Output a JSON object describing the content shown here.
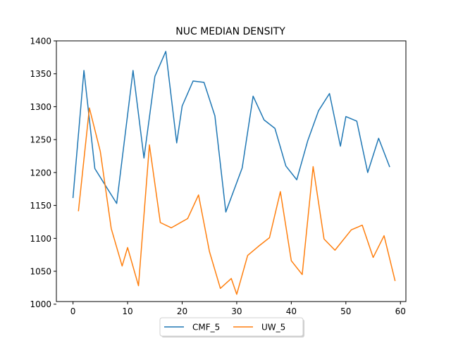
{
  "chart_data": {
    "type": "line",
    "title": "NUC MEDIAN DENSITY",
    "xlabel": "",
    "ylabel": "",
    "xlim": [
      -3.05,
      61.0
    ],
    "ylim": [
      1004,
      1400
    ],
    "x_ticks": [
      0,
      10,
      20,
      30,
      40,
      50,
      60
    ],
    "y_ticks": [
      1000,
      1050,
      1100,
      1150,
      1200,
      1250,
      1300,
      1350,
      1400
    ],
    "grid": false,
    "legend_position": "bottom-center",
    "series": [
      {
        "name": "CMF_5",
        "color": "#1f77b4",
        "x": [
          0,
          2,
          4,
          8,
          11,
          13,
          15,
          17,
          19,
          20,
          22,
          24,
          26,
          28,
          31,
          33,
          35,
          37,
          39,
          41,
          43,
          45,
          47,
          49,
          50,
          52,
          54,
          56,
          58
        ],
        "y": [
          1162,
          1355,
          1206,
          1153,
          1355,
          1222,
          1346,
          1384,
          1245,
          1301,
          1339,
          1337,
          1286,
          1140,
          1207,
          1316,
          1280,
          1267,
          1210,
          1189,
          1248,
          1294,
          1320,
          1240,
          1285,
          1278,
          1200,
          1252,
          1209
        ]
      },
      {
        "name": "UW_5",
        "color": "#ff7f0e",
        "x": [
          1,
          3,
          5,
          7,
          9,
          10,
          12,
          14,
          16,
          18,
          21,
          23,
          25,
          27,
          29,
          30,
          32,
          34,
          36,
          38,
          40,
          42,
          44,
          46,
          48,
          51,
          53,
          55,
          57,
          59
        ],
        "y": [
          1142,
          1298,
          1232,
          1115,
          1058,
          1086,
          1028,
          1242,
          1124,
          1116,
          1130,
          1166,
          1080,
          1024,
          1039,
          1015,
          1074,
          1088,
          1101,
          1171,
          1066,
          1045,
          1209,
          1099,
          1082,
          1113,
          1120,
          1071,
          1104,
          1036
        ]
      }
    ]
  }
}
